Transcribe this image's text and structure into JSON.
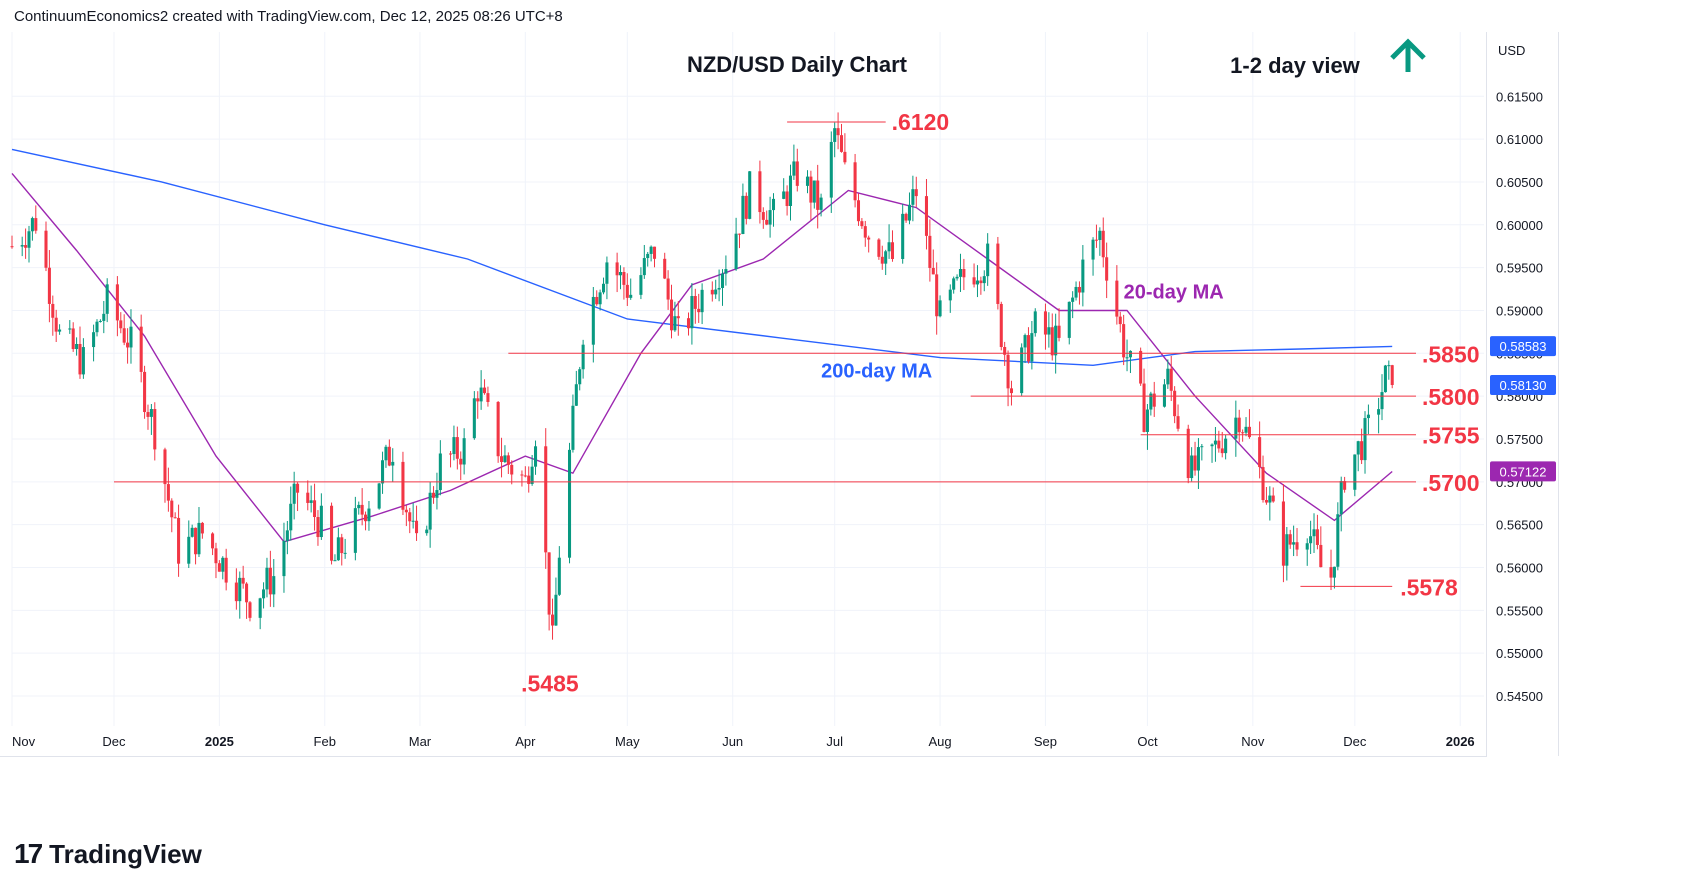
{
  "header": {
    "attribution": "ContinuumEconomics2 created with TradingView.com, Dec 12, 2025 08:26 UTC+8"
  },
  "brand": {
    "logo": "17",
    "name": "TradingView"
  },
  "chart_data": {
    "type": "candlestick",
    "title": "NZD/USD Daily Chart",
    "view_label": "1-2 day view",
    "view_arrow": "up",
    "currency": "USD",
    "y_axis_ticks": [
      "0.61500",
      "0.61000",
      "0.60500",
      "0.60000",
      "0.59500",
      "0.59000",
      "0.58500",
      "0.58000",
      "0.57500",
      "0.57000",
      "0.56500",
      "0.56000",
      "0.55500",
      "0.55000",
      "0.54500"
    ],
    "ylim": [
      0.5415,
      0.6225
    ],
    "x_axis_ticks": [
      "Nov",
      "Dec",
      "2025",
      "Feb",
      "Mar",
      "Apr",
      "May",
      "Jun",
      "Jul",
      "Aug",
      "Sep",
      "Oct",
      "Nov",
      "Dec",
      "2026"
    ],
    "x_range": [
      "2024-11-01",
      "2026-01-08"
    ],
    "price_badges": [
      {
        "value": "0.58583",
        "level": 0.58583,
        "color": "#2962ff",
        "series": "200-day MA"
      },
      {
        "value": "0.58130",
        "level": 0.5813,
        "color": "#2962ff",
        "series": "last price"
      },
      {
        "value": "0.57122",
        "level": 0.57122,
        "color": "#9c27b0",
        "series": "20-day MA"
      }
    ],
    "levels": [
      {
        "label": ".6120",
        "value": 0.612,
        "from": "2025-06-17",
        "to": "2025-07-16"
      },
      {
        "label": ".5850",
        "value": 0.585,
        "from": "2025-03-27",
        "to": "2025-12-19"
      },
      {
        "label": ".5800",
        "value": 0.58,
        "from": "2025-08-10",
        "to": "2025-12-19"
      },
      {
        "label": ".5755",
        "value": 0.5755,
        "from": "2025-09-29",
        "to": "2025-12-19"
      },
      {
        "label": ".5700",
        "value": 0.57,
        "from": "2024-12-01",
        "to": "2025-12-19"
      },
      {
        "label": ".5578",
        "value": 0.5578,
        "from": "2025-11-15",
        "to": "2025-12-12"
      },
      {
        "label": ".5485",
        "value": 0.5485,
        "from": null,
        "to": null
      }
    ],
    "series": [
      {
        "name": "20-day MA",
        "color": "#9c27b0"
      },
      {
        "name": "200-day MA",
        "color": "#2962ff"
      }
    ],
    "annotations": [
      {
        "text": "20-day MA",
        "color": "#9c27b0",
        "date": "2025-09-24",
        "value": 0.5914
      },
      {
        "text": "200-day MA",
        "color": "#2962ff",
        "date": "2025-06-27",
        "value": 0.5822
      }
    ],
    "colors": {
      "up": "#089981",
      "down": "#f23645",
      "level_line": "#f23645",
      "level_text": "#f23645",
      "grid": "#f0f3fa",
      "arrow": "#089981"
    },
    "price_path": [
      {
        "date": "2024-11-01",
        "close": 0.5975
      },
      {
        "date": "2024-11-08",
        "close": 0.6005
      },
      {
        "date": "2024-11-15",
        "close": 0.587
      },
      {
        "date": "2024-11-22",
        "close": 0.584
      },
      {
        "date": "2024-11-29",
        "close": 0.591
      },
      {
        "date": "2024-12-06",
        "close": 0.586
      },
      {
        "date": "2024-12-13",
        "close": 0.576
      },
      {
        "date": "2024-12-20",
        "close": 0.562
      },
      {
        "date": "2024-12-27",
        "close": 0.564
      },
      {
        "date": "2025-01-03",
        "close": 0.56
      },
      {
        "date": "2025-01-10",
        "close": 0.556
      },
      {
        "date": "2025-01-17",
        "close": 0.559
      },
      {
        "date": "2025-01-24",
        "close": 0.569
      },
      {
        "date": "2025-01-31",
        "close": 0.565
      },
      {
        "date": "2025-02-03",
        "close": 0.56
      },
      {
        "date": "2025-02-14",
        "close": 0.568
      },
      {
        "date": "2025-02-21",
        "close": 0.574
      },
      {
        "date": "2025-02-28",
        "close": 0.562
      },
      {
        "date": "2025-03-07",
        "close": 0.572
      },
      {
        "date": "2025-03-14",
        "close": 0.574
      },
      {
        "date": "2025-03-18",
        "close": 0.581
      },
      {
        "date": "2025-03-25",
        "close": 0.573
      },
      {
        "date": "2025-04-01",
        "close": 0.57
      },
      {
        "date": "2025-04-04",
        "close": 0.576
      },
      {
        "date": "2025-04-09",
        "close": 0.551
      },
      {
        "date": "2025-04-11",
        "close": 0.562
      },
      {
        "date": "2025-04-18",
        "close": 0.588
      },
      {
        "date": "2025-04-25",
        "close": 0.596
      },
      {
        "date": "2025-05-02",
        "close": 0.592
      },
      {
        "date": "2025-05-09",
        "close": 0.597
      },
      {
        "date": "2025-05-16",
        "close": 0.587
      },
      {
        "date": "2025-05-23",
        "close": 0.592
      },
      {
        "date": "2025-05-30",
        "close": 0.596
      },
      {
        "date": "2025-06-06",
        "close": 0.604
      },
      {
        "date": "2025-06-13",
        "close": 0.601
      },
      {
        "date": "2025-06-20",
        "close": 0.606
      },
      {
        "date": "2025-06-27",
        "close": 0.602
      },
      {
        "date": "2025-07-01",
        "close": 0.611
      },
      {
        "date": "2025-07-04",
        "close": 0.606
      },
      {
        "date": "2025-07-11",
        "close": 0.599
      },
      {
        "date": "2025-07-18",
        "close": 0.596
      },
      {
        "date": "2025-07-25",
        "close": 0.604
      },
      {
        "date": "2025-08-01",
        "close": 0.589
      },
      {
        "date": "2025-08-08",
        "close": 0.594
      },
      {
        "date": "2025-08-15",
        "close": 0.596
      },
      {
        "date": "2025-08-22",
        "close": 0.581
      },
      {
        "date": "2025-08-29",
        "close": 0.588
      },
      {
        "date": "2025-09-05",
        "close": 0.586
      },
      {
        "date": "2025-09-12",
        "close": 0.595
      },
      {
        "date": "2025-09-17",
        "close": 0.599
      },
      {
        "date": "2025-09-24",
        "close": 0.586
      },
      {
        "date": "2025-09-30",
        "close": 0.578
      },
      {
        "date": "2025-10-07",
        "close": 0.582
      },
      {
        "date": "2025-10-14",
        "close": 0.571
      },
      {
        "date": "2025-10-21",
        "close": 0.574
      },
      {
        "date": "2025-10-28",
        "close": 0.578
      },
      {
        "date": "2025-11-04",
        "close": 0.57
      },
      {
        "date": "2025-11-10",
        "close": 0.562
      },
      {
        "date": "2025-11-17",
        "close": 0.565
      },
      {
        "date": "2025-11-21",
        "close": 0.56
      },
      {
        "date": "2025-11-24",
        "close": 0.559
      },
      {
        "date": "2025-11-28",
        "close": 0.571
      },
      {
        "date": "2025-12-05",
        "close": 0.576
      },
      {
        "date": "2025-12-10",
        "close": 0.582
      },
      {
        "date": "2025-12-12",
        "close": 0.5813
      }
    ],
    "ma20_path": [
      {
        "date": "2024-11-01",
        "value": 0.606
      },
      {
        "date": "2024-11-20",
        "value": 0.597
      },
      {
        "date": "2024-12-10",
        "value": 0.587
      },
      {
        "date": "2024-12-31",
        "value": 0.573
      },
      {
        "date": "2025-01-20",
        "value": 0.563
      },
      {
        "date": "2025-02-15",
        "value": 0.566
      },
      {
        "date": "2025-03-10",
        "value": 0.569
      },
      {
        "date": "2025-04-01",
        "value": 0.573
      },
      {
        "date": "2025-04-15",
        "value": 0.571
      },
      {
        "date": "2025-05-05",
        "value": 0.585
      },
      {
        "date": "2025-05-20",
        "value": 0.593
      },
      {
        "date": "2025-06-10",
        "value": 0.596
      },
      {
        "date": "2025-07-05",
        "value": 0.604
      },
      {
        "date": "2025-07-25",
        "value": 0.602
      },
      {
        "date": "2025-08-15",
        "value": 0.596
      },
      {
        "date": "2025-09-05",
        "value": 0.59
      },
      {
        "date": "2025-09-25",
        "value": 0.59
      },
      {
        "date": "2025-10-15",
        "value": 0.58
      },
      {
        "date": "2025-11-05",
        "value": 0.571
      },
      {
        "date": "2025-11-25",
        "value": 0.5655
      },
      {
        "date": "2025-12-12",
        "value": 0.5712
      }
    ],
    "ma200_path": [
      {
        "date": "2024-11-01",
        "value": 0.6088
      },
      {
        "date": "2024-12-15",
        "value": 0.605
      },
      {
        "date": "2025-02-01",
        "value": 0.6
      },
      {
        "date": "2025-03-15",
        "value": 0.596
      },
      {
        "date": "2025-05-01",
        "value": 0.589
      },
      {
        "date": "2025-06-15",
        "value": 0.5868
      },
      {
        "date": "2025-08-01",
        "value": 0.5845
      },
      {
        "date": "2025-09-15",
        "value": 0.5836
      },
      {
        "date": "2025-10-15",
        "value": 0.5852
      },
      {
        "date": "2025-11-15",
        "value": 0.5855
      },
      {
        "date": "2025-12-12",
        "value": 0.5858
      }
    ]
  }
}
